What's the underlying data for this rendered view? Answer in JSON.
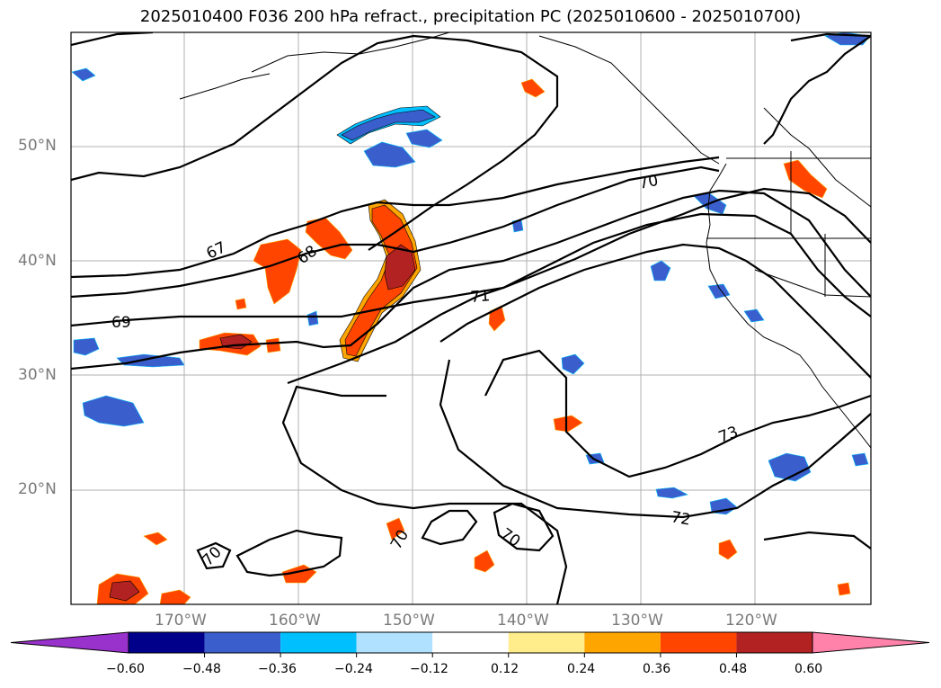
{
  "title": "2025010400 F036 200 hPa refract., precipitation PC (2025010600 - 2025010700)",
  "lat_labels": [
    "50°N",
    "40°N",
    "30°N",
    "20°N"
  ],
  "lon_labels": [
    "170°W",
    "160°W",
    "150°W",
    "140°W",
    "130°W",
    "120°W"
  ],
  "contour_labels": [
    "67",
    "68",
    "69",
    "70",
    "71",
    "72",
    "73",
    "70",
    "70",
    "70"
  ],
  "colorbar": {
    "ticks": [
      "−0.60",
      "−0.48",
      "−0.36",
      "−0.24",
      "−0.12",
      "0.12",
      "0.24",
      "0.36",
      "0.48",
      "0.60"
    ],
    "colors": [
      "#9932cc",
      "#00008b",
      "#3a5fcd",
      "#00bfff",
      "#b0e2ff",
      "#ffffff",
      "#ffec8b",
      "#ffa500",
      "#ff4500",
      "#b22222",
      "#ff82ab"
    ]
  }
}
